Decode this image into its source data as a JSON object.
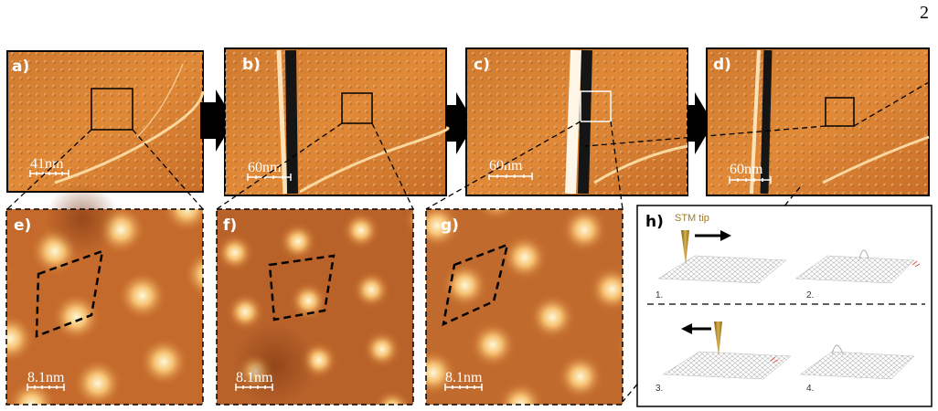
{
  "page_number": "2",
  "panels": [
    {
      "label": "a)",
      "scale_bar": "41nm"
    },
    {
      "label": "b)",
      "scale_bar": "60nm"
    },
    {
      "label": "c)",
      "scale_bar": "60nm"
    },
    {
      "label": "d)",
      "scale_bar": "60nm"
    },
    {
      "label": "e)",
      "scale_bar": "8.1nm"
    },
    {
      "label": "f)",
      "scale_bar": "8.1nm"
    },
    {
      "label": "g)",
      "scale_bar": "8.1nm"
    }
  ],
  "schematic": {
    "label": "h)",
    "tip_label": "STM tip",
    "steps": [
      "1.",
      "2.",
      "3.",
      "4."
    ]
  }
}
